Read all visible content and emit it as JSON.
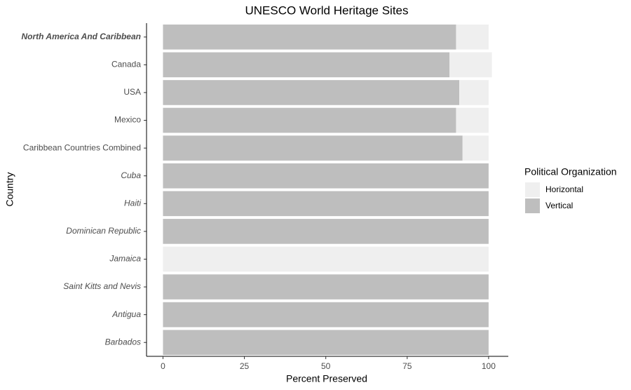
{
  "chart_data": {
    "type": "stacked-barh",
    "title": "UNESCO World Heritage Sites",
    "x_label": "Percent Preserved",
    "y_label": "Country",
    "legend_title": "Political Organization",
    "categories": [
      "North America And Caribbean",
      "Canada",
      "USA",
      "Mexico",
      "Caribbean Countries Combined",
      "Cuba",
      "Haiti",
      "Dominican Republic",
      "Jamaica",
      "Saint Kitts and Nevis",
      "Antigua",
      "Barbados"
    ],
    "category_styles": [
      "bold-italic",
      "normal",
      "normal",
      "normal",
      "normal",
      "italic",
      "italic",
      "italic",
      "italic",
      "italic",
      "italic",
      "italic"
    ],
    "series": [
      {
        "name": "Horizontal",
        "color": "#efefef",
        "values": [
          10,
          13,
          9,
          10,
          8,
          0,
          0,
          0,
          100,
          0,
          0,
          0
        ]
      },
      {
        "name": "Vertical",
        "color": "#bebebe",
        "values": [
          90,
          88,
          91,
          90,
          92,
          100,
          100,
          100,
          0,
          100,
          100,
          100
        ]
      }
    ],
    "xlim": [
      -5.05,
      106.05
    ],
    "xticks": [
      0,
      25,
      50,
      75,
      100
    ],
    "legend_position": "right"
  }
}
